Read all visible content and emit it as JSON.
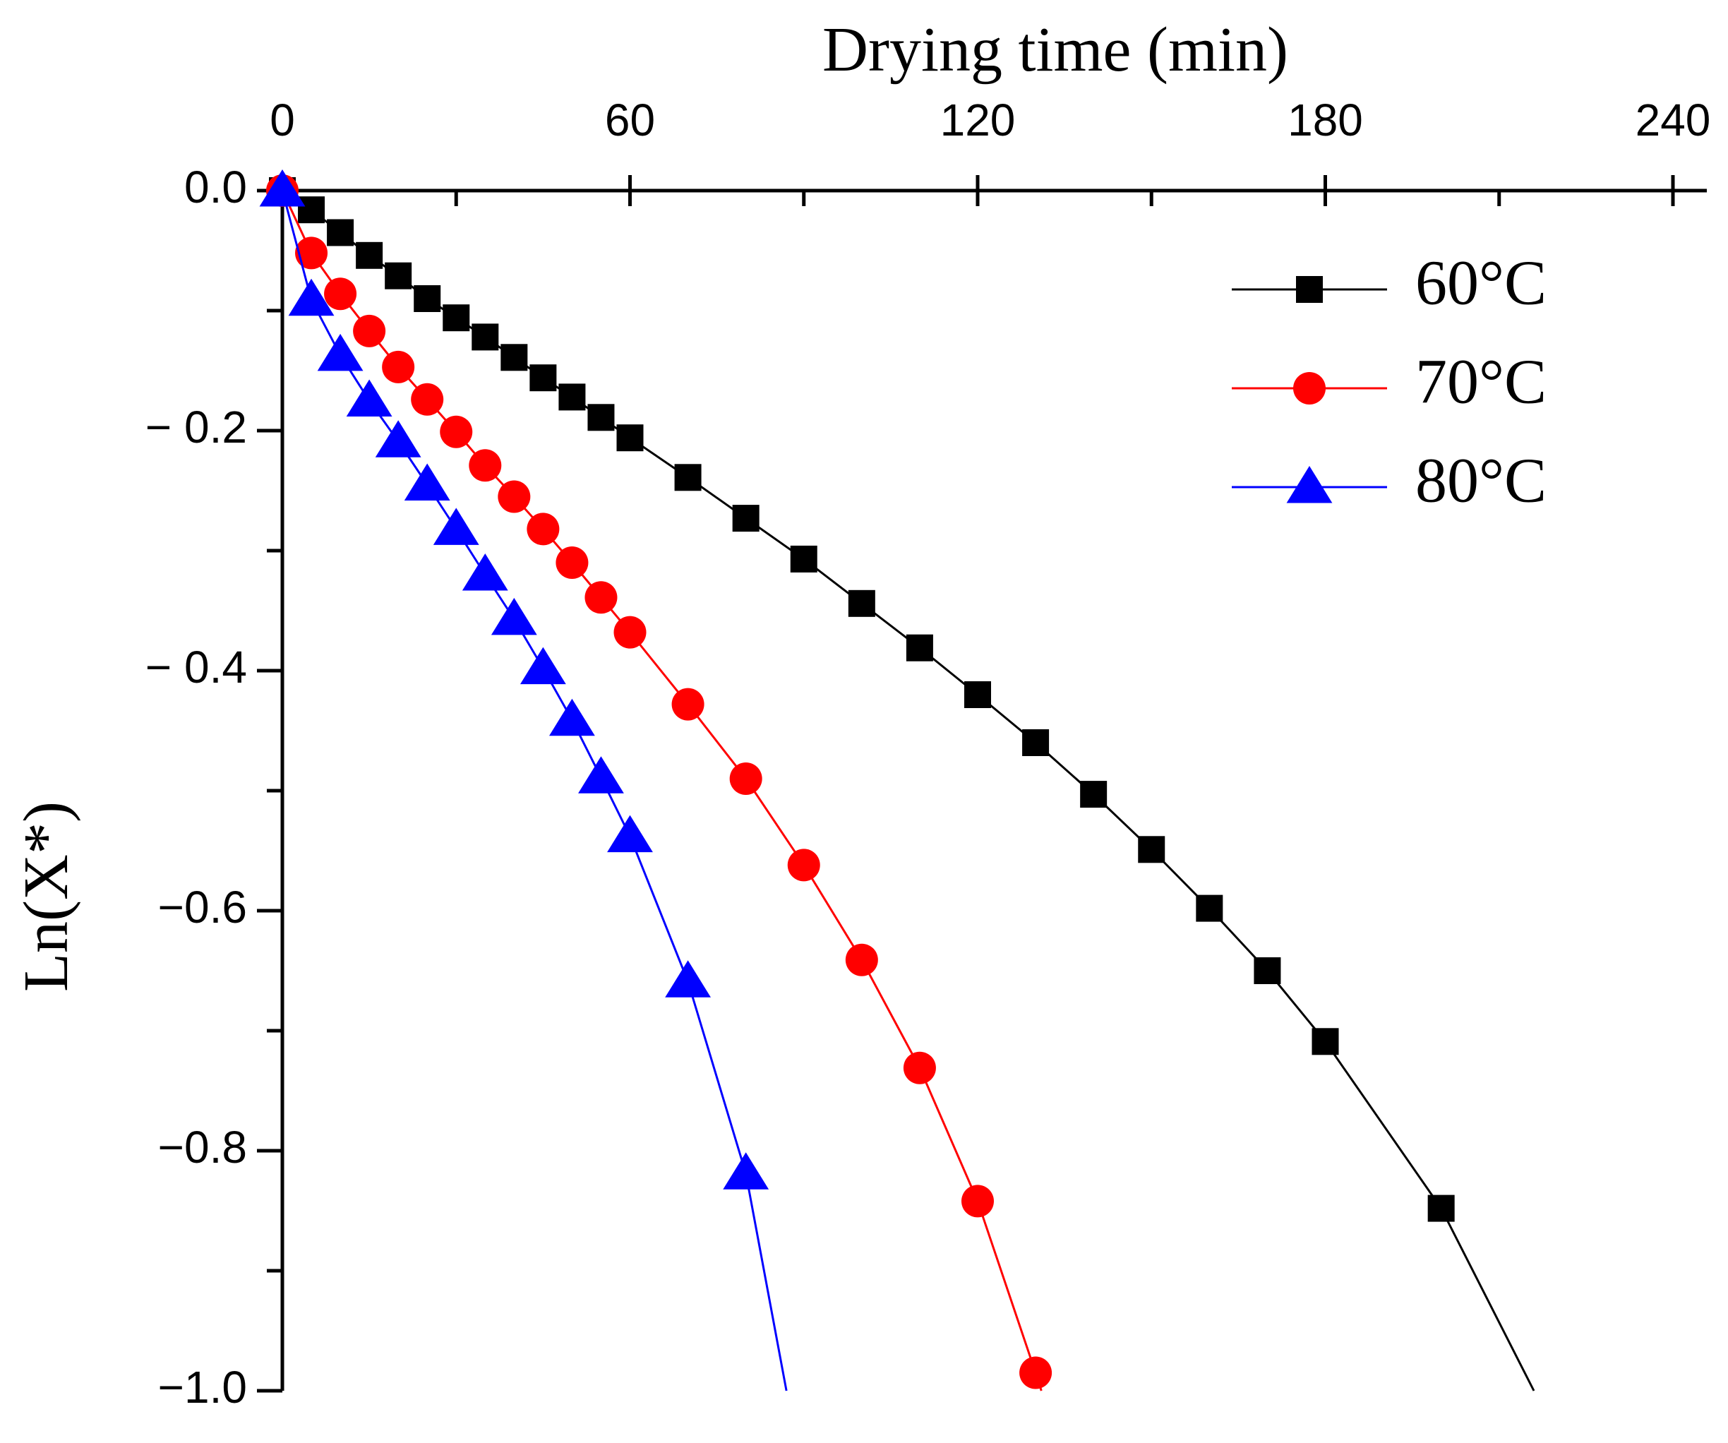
{
  "chart_data": {
    "type": "line",
    "title": "",
    "xlabel": "Drying time (min)",
    "ylabel": "Ln(X*)",
    "xlim": [
      0,
      240
    ],
    "ylim": [
      -1.0,
      0.0
    ],
    "x_ticks": [
      0,
      60,
      120,
      180,
      240
    ],
    "x_tick_labels": [
      "0",
      "60",
      "120",
      "180",
      "240"
    ],
    "y_ticks": [
      0.0,
      -0.2,
      -0.4,
      -0.6,
      -0.8,
      -1.0
    ],
    "y_tick_labels": [
      "0.0",
      "− 0.2",
      "− 0.4",
      "−0.6",
      "−0.8",
      "−1.0"
    ],
    "legend_position": "top-right",
    "x_axis_position": "top",
    "series": [
      {
        "name": "60°C",
        "color": "#000000",
        "marker": "square",
        "x": [
          0,
          5,
          10,
          15,
          20,
          25,
          30,
          35,
          40,
          45,
          50,
          55,
          60,
          70,
          80,
          90,
          100,
          110,
          120,
          130,
          140,
          150,
          160,
          170,
          180,
          200
        ],
        "y": [
          0.0,
          -0.016,
          -0.035,
          -0.054,
          -0.071,
          -0.09,
          -0.106,
          -0.122,
          -0.139,
          -0.156,
          -0.172,
          -0.189,
          -0.206,
          -0.239,
          -0.273,
          -0.307,
          -0.344,
          -0.381,
          -0.42,
          -0.46,
          -0.503,
          -0.549,
          -0.598,
          -0.65,
          -0.709,
          -0.848
        ],
        "line_end": [
          216,
          -1.0
        ]
      },
      {
        "name": "70°C",
        "color": "#ff0000",
        "marker": "circle",
        "x": [
          0,
          5,
          10,
          15,
          20,
          25,
          30,
          35,
          40,
          45,
          50,
          55,
          60,
          70,
          80,
          90,
          100,
          110,
          120,
          130
        ],
        "y": [
          0.0,
          -0.052,
          -0.086,
          -0.117,
          -0.147,
          -0.174,
          -0.201,
          -0.229,
          -0.255,
          -0.282,
          -0.31,
          -0.339,
          -0.368,
          -0.428,
          -0.49,
          -0.562,
          -0.641,
          -0.731,
          -0.842,
          -0.985
        ],
        "line_end": [
          131,
          -1.0
        ]
      },
      {
        "name": "80°C",
        "color": "#0000ff",
        "marker": "triangle",
        "x": [
          0,
          5,
          10,
          15,
          20,
          25,
          30,
          35,
          40,
          45,
          50,
          55,
          60,
          70,
          80
        ],
        "y": [
          0.0,
          -0.091,
          -0.137,
          -0.175,
          -0.209,
          -0.245,
          -0.282,
          -0.32,
          -0.357,
          -0.398,
          -0.441,
          -0.489,
          -0.538,
          -0.659,
          -0.819
        ],
        "line_end": [
          87,
          -1.0
        ]
      }
    ]
  }
}
